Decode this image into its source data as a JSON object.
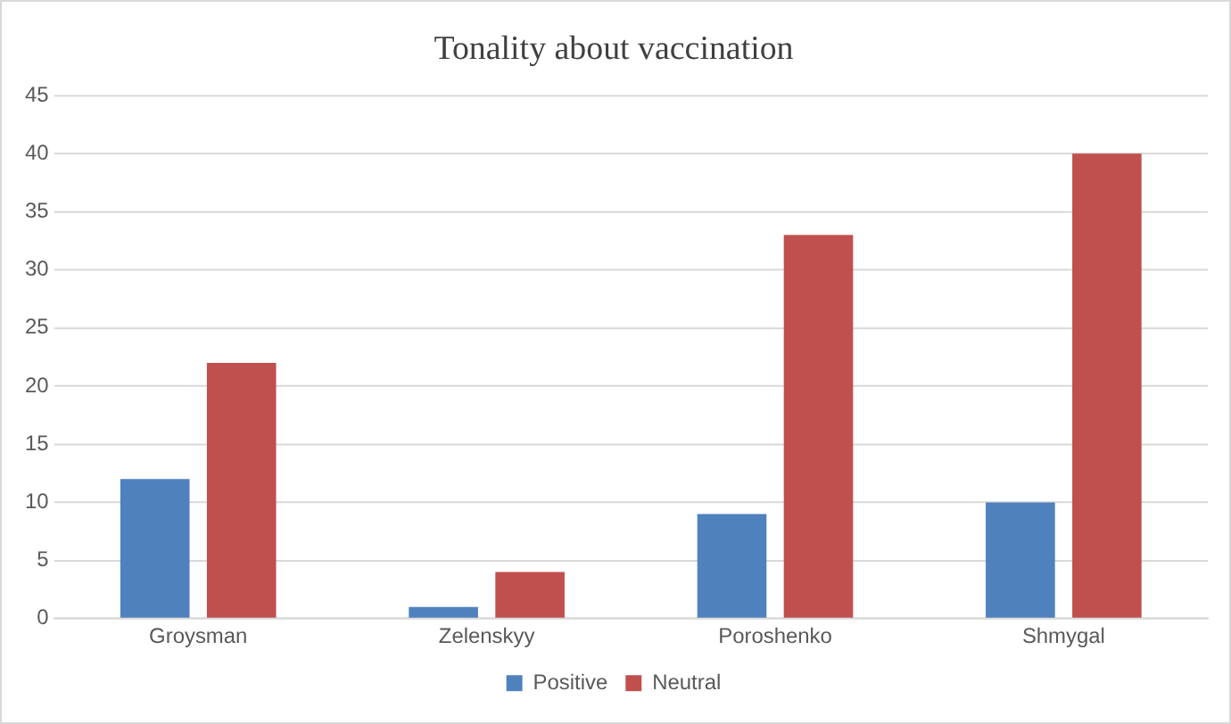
{
  "chart_data": {
    "type": "bar",
    "title": "Tonality about vaccination",
    "categories": [
      "Groysman",
      "Zelenskyy",
      "Poroshenko",
      "Shmygal"
    ],
    "series": [
      {
        "name": "Positive",
        "color": "#4f81bd",
        "values": [
          12,
          1,
          9,
          10
        ]
      },
      {
        "name": "Neutral",
        "color": "#c0504d",
        "values": [
          22,
          4,
          33,
          40
        ]
      }
    ],
    "ylim": [
      0,
      45
    ],
    "yticks": [
      0,
      5,
      10,
      15,
      20,
      25,
      30,
      35,
      40,
      45
    ],
    "grid": "y",
    "legend": "bottom"
  }
}
